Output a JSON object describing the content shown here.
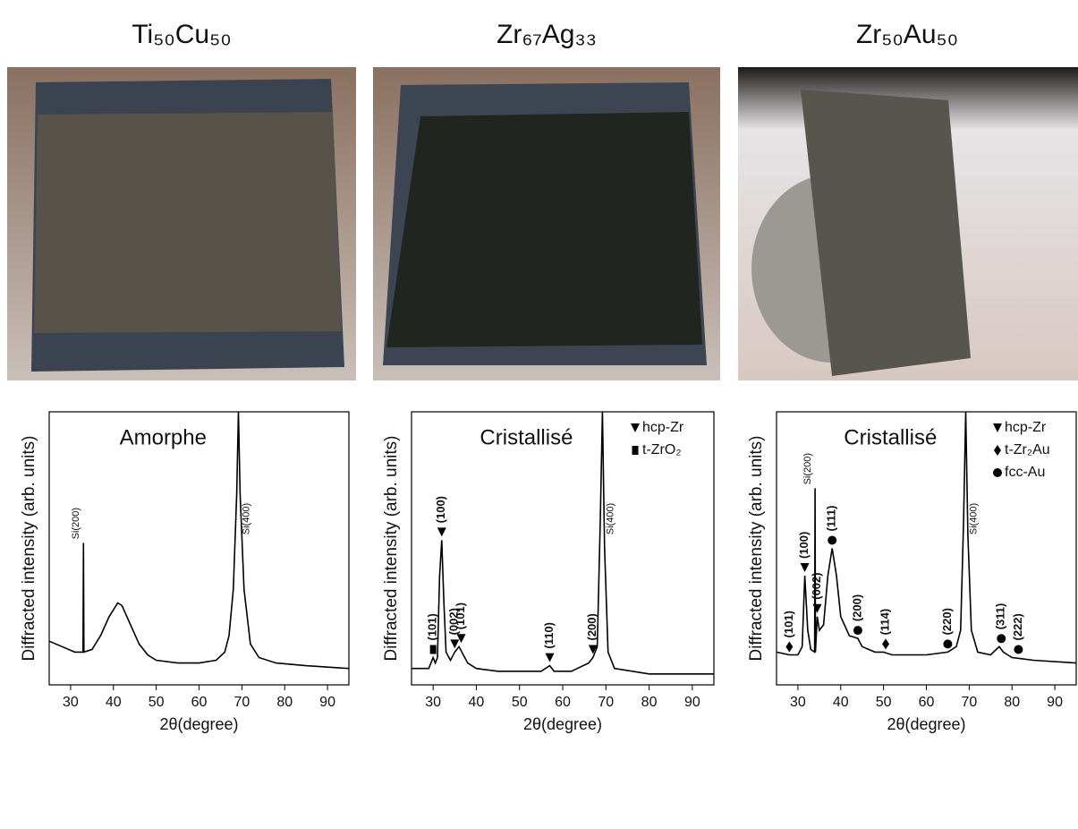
{
  "chart_data": [
    {
      "type": "line",
      "title": "Ti₅₀Cu₅₀",
      "state": "Amorphe",
      "x": [
        25,
        28,
        31,
        32.9,
        33,
        33.1,
        35,
        37,
        39,
        41,
        42,
        44,
        46,
        48,
        50,
        55,
        60,
        64,
        66,
        67,
        68,
        68.8,
        69.2,
        69.6,
        70.5,
        72,
        74,
        78,
        85,
        95
      ],
      "series": [
        {
          "color": "#000000",
          "values": [
            16,
            14,
            12,
            12,
            52,
            12,
            13,
            18,
            25,
            30,
            29,
            22,
            15,
            11,
            9,
            8,
            8,
            9,
            12,
            18,
            35,
            70,
            100,
            70,
            35,
            15,
            10,
            8,
            7,
            6
          ]
        }
      ],
      "xlim": [
        25,
        95
      ],
      "ylim": [
        0,
        100
      ],
      "xticks": [
        30,
        40,
        50,
        60,
        70,
        80,
        90
      ],
      "xlabel": "2θ(degree)",
      "ylabel": "Diffracted intensity (arb. units)",
      "phases": [],
      "annotations": [
        {
          "text": "Si(200)",
          "x": 33,
          "y": 52
        },
        {
          "text": "Si(400)",
          "x": 69.2,
          "y": 100
        }
      ]
    },
    {
      "type": "line",
      "title": "Zr₆₇Ag₃₃",
      "state": "Cristallisé",
      "x": [
        25,
        29,
        30,
        30.5,
        31,
        31.5,
        32,
        32.5,
        33,
        34,
        35,
        36,
        37,
        38,
        40,
        45,
        50,
        55,
        57,
        58,
        62,
        66,
        67,
        68,
        68.7,
        69.2,
        69.7,
        70.5,
        72,
        80,
        95
      ],
      "series": [
        {
          "color": "#000000",
          "values": [
            6,
            6,
            10,
            8,
            10,
            40,
            53,
            30,
            12,
            9,
            12,
            14,
            11,
            8,
            6,
            5,
            5,
            5,
            7,
            5,
            5,
            8,
            10,
            14,
            60,
            100,
            50,
            12,
            6,
            4,
            4
          ]
        }
      ],
      "xlim": [
        25,
        95
      ],
      "ylim": [
        0,
        100
      ],
      "xticks": [
        30,
        40,
        50,
        60,
        70,
        80,
        90
      ],
      "xlabel": "2θ(degree)",
      "ylabel": "Diffracted intensity (arb. units)",
      "phases": [
        {
          "name": "hcp-Zr",
          "marker": "triangle"
        },
        {
          "name": "t-ZrO₂",
          "marker": "square"
        }
      ],
      "annotations": [
        {
          "text": "(101)",
          "x": 30,
          "y": 10,
          "phase": 1
        },
        {
          "text": "(100)",
          "x": 32,
          "y": 53,
          "phase": 0
        },
        {
          "text": "(002)",
          "x": 35,
          "y": 12,
          "phase": 0
        },
        {
          "text": "(101)",
          "x": 36.5,
          "y": 14,
          "phase": 0
        },
        {
          "text": "(110)",
          "x": 57,
          "y": 7,
          "phase": 0
        },
        {
          "text": "(200)",
          "x": 67,
          "y": 10,
          "phase": 0
        },
        {
          "text": "Si(400)",
          "x": 69.2,
          "y": 100
        }
      ]
    },
    {
      "type": "line",
      "title": "Zr₅₀Au₅₀",
      "state": "Cristallisé",
      "x": [
        25,
        28,
        30,
        31,
        31.6,
        32.3,
        33,
        33.9,
        34,
        34.1,
        34.5,
        35,
        36,
        37,
        38,
        39,
        40,
        42,
        44,
        45,
        48,
        50,
        52,
        55,
        60,
        65,
        67,
        68,
        68.7,
        69.2,
        69.7,
        70.5,
        72,
        75,
        77,
        78,
        80,
        85,
        95
      ],
      "series": [
        {
          "color": "#000000",
          "values": [
            12,
            11,
            11,
            14,
            40,
            20,
            13,
            12,
            72,
            12,
            25,
            20,
            22,
            40,
            50,
            40,
            25,
            18,
            17,
            14,
            12,
            12,
            11,
            11,
            11,
            12,
            14,
            20,
            60,
            100,
            55,
            20,
            12,
            11,
            14,
            12,
            10,
            9,
            8
          ]
        }
      ],
      "xlim": [
        25,
        95
      ],
      "ylim": [
        0,
        100
      ],
      "xticks": [
        30,
        40,
        50,
        60,
        70,
        80,
        90
      ],
      "xlabel": "2θ(degree)",
      "ylabel": "Diffracted intensity (arb. units)",
      "phases": [
        {
          "name": "hcp-Zr",
          "marker": "triangle"
        },
        {
          "name": "t-Zr₂Au",
          "marker": "diamond"
        },
        {
          "name": "fcc-Au",
          "marker": "circle"
        }
      ],
      "annotations": [
        {
          "text": "(101)",
          "x": 28,
          "y": 11,
          "phase": 1
        },
        {
          "text": "(100)",
          "x": 31.6,
          "y": 40,
          "phase": 0
        },
        {
          "text": "(002)",
          "x": 34.5,
          "y": 25,
          "phase": 0
        },
        {
          "text": "(111)",
          "x": 38,
          "y": 50,
          "phase": 2
        },
        {
          "text": "(200)",
          "x": 44,
          "y": 17,
          "phase": 2
        },
        {
          "text": "(114)",
          "x": 50.5,
          "y": 12,
          "phase": 1
        },
        {
          "text": "(220)",
          "x": 65,
          "y": 12,
          "phase": 2
        },
        {
          "text": "(311)",
          "x": 77.5,
          "y": 14,
          "phase": 2
        },
        {
          "text": "(222)",
          "x": 81.5,
          "y": 10,
          "phase": 2
        },
        {
          "text": "Si(200)",
          "x": 34,
          "y": 72
        },
        {
          "text": "Si(400)",
          "x": 69.2,
          "y": 100
        }
      ]
    }
  ]
}
